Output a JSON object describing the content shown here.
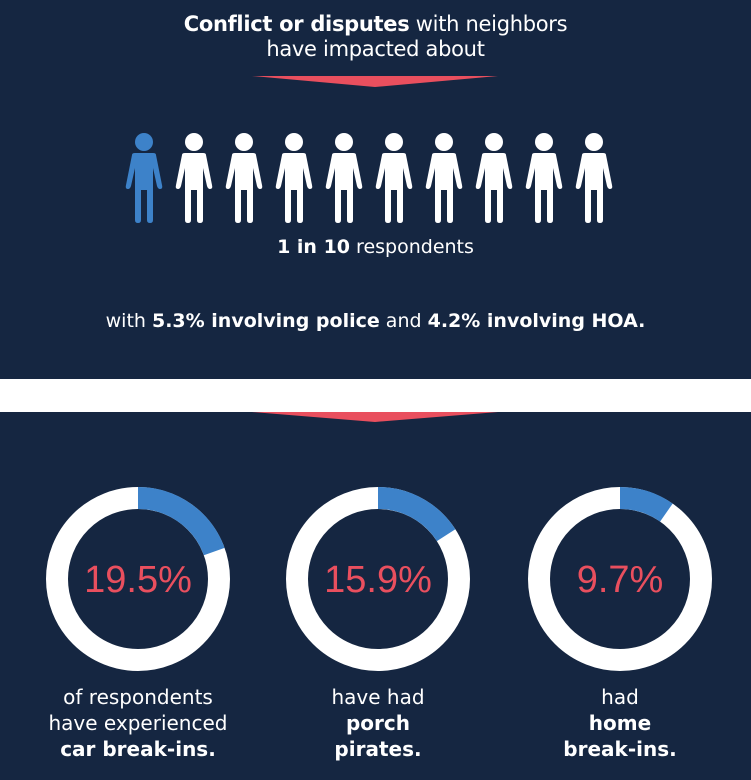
{
  "header": {
    "title_bold": "Conflict or disputes",
    "title_rest": " with neighbors",
    "title_line2": "have impacted about"
  },
  "people_icons": {
    "total": 10,
    "highlighted": 1,
    "icon": "person-icon"
  },
  "ratio": {
    "bold": "1 in 10",
    "rest": " respondents"
  },
  "detail": {
    "prefix": "with ",
    "police_pct": "5.3% involving police",
    "middle": " and ",
    "hoa_pct": "4.2% involving HOA."
  },
  "colors": {
    "background": "#152641",
    "highlight_blue": "#3d82c9",
    "accent_red": "#e94f5e",
    "ring": "#ffffff"
  },
  "chart_data": {
    "type": "pie",
    "charts": [
      {
        "value": 19.5,
        "label": "19.5%",
        "caption": [
          "of respondents",
          "have experienced",
          "car break-ins."
        ],
        "bold_lines": [
          2
        ]
      },
      {
        "value": 15.9,
        "label": "15.9%",
        "caption": [
          "have had",
          "porch",
          "pirates."
        ],
        "bold_lines": [
          1,
          2
        ]
      },
      {
        "value": 9.7,
        "label": "9.7%",
        "caption": [
          "had",
          "home",
          "break-ins."
        ],
        "bold_lines": [
          1,
          2
        ]
      }
    ]
  }
}
